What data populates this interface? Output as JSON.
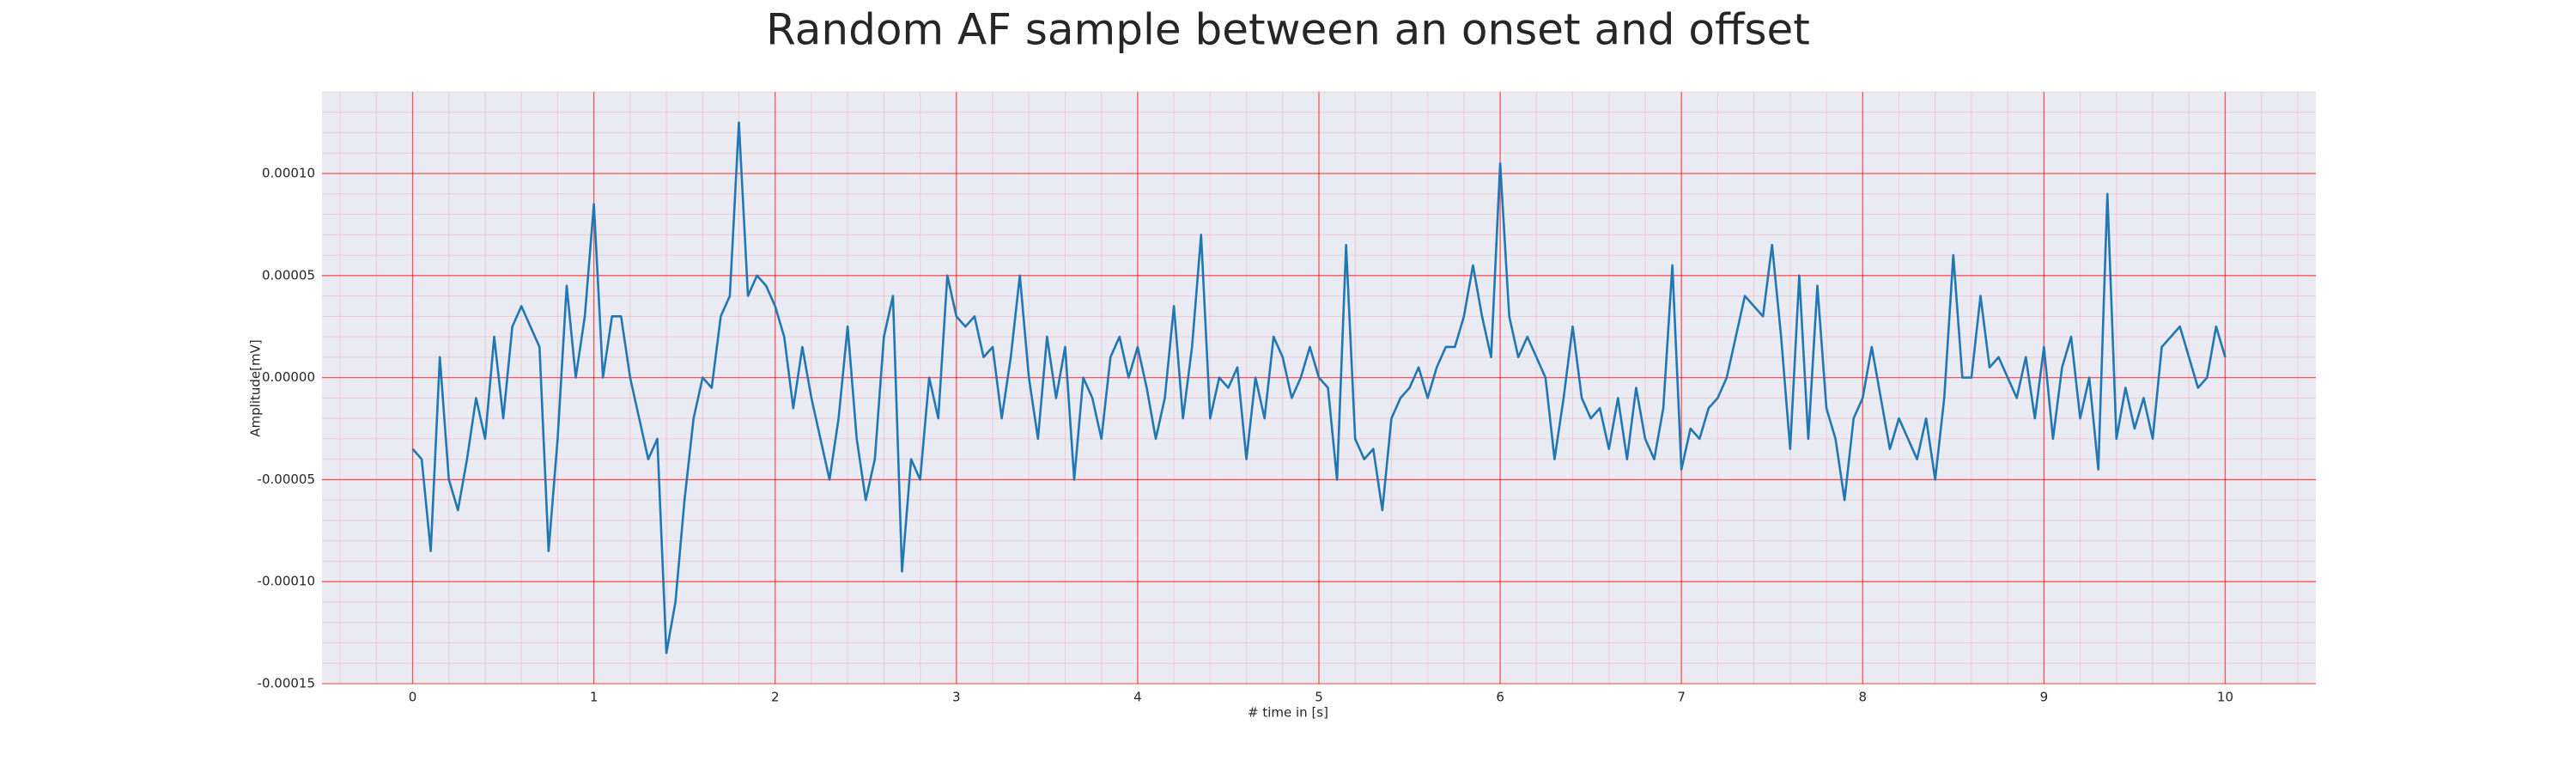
{
  "chart_data": {
    "type": "line",
    "title": "Random AF sample between an onset and offset",
    "xlabel": "# time in [s]",
    "ylabel": "Amplitude[mV]",
    "x": [
      0,
      0.05,
      0.1,
      0.15,
      0.2,
      0.25,
      0.3,
      0.35,
      0.4,
      0.45,
      0.5,
      0.55,
      0.6,
      0.65,
      0.7,
      0.75,
      0.8,
      0.85,
      0.9,
      0.95,
      1,
      1.05,
      1.1,
      1.15,
      1.2,
      1.25,
      1.3,
      1.35,
      1.4,
      1.45,
      1.5,
      1.55,
      1.6,
      1.65,
      1.7,
      1.75,
      1.8,
      1.85,
      1.9,
      1.95,
      2,
      2.05,
      2.1,
      2.15,
      2.2,
      2.25,
      2.3,
      2.35,
      2.4,
      2.45,
      2.5,
      2.55,
      2.6,
      2.65,
      2.7,
      2.75,
      2.8,
      2.85,
      2.9,
      2.95,
      3,
      3.05,
      3.1,
      3.15,
      3.2,
      3.25,
      3.3,
      3.35,
      3.4,
      3.45,
      3.5,
      3.55,
      3.6,
      3.65,
      3.7,
      3.75,
      3.8,
      3.85,
      3.9,
      3.95,
      4,
      4.05,
      4.1,
      4.15,
      4.2,
      4.25,
      4.3,
      4.35,
      4.4,
      4.45,
      4.5,
      4.55,
      4.6,
      4.65,
      4.7,
      4.75,
      4.8,
      4.85,
      4.9,
      4.95,
      5,
      5.05,
      5.1,
      5.15,
      5.2,
      5.25,
      5.3,
      5.35,
      5.4,
      5.45,
      5.5,
      5.55,
      5.6,
      5.65,
      5.7,
      5.75,
      5.8,
      5.85,
      5.9,
      5.95,
      6,
      6.05,
      6.1,
      6.15,
      6.2,
      6.25,
      6.3,
      6.35,
      6.4,
      6.45,
      6.5,
      6.55,
      6.6,
      6.65,
      6.7,
      6.75,
      6.8,
      6.85,
      6.9,
      6.95,
      7,
      7.05,
      7.1,
      7.15,
      7.2,
      7.25,
      7.3,
      7.35,
      7.4,
      7.45,
      7.5,
      7.55,
      7.6,
      7.65,
      7.7,
      7.75,
      7.8,
      7.85,
      7.9,
      7.95,
      8,
      8.05,
      8.1,
      8.15,
      8.2,
      8.25,
      8.3,
      8.35,
      8.4,
      8.45,
      8.5,
      8.55,
      8.6,
      8.65,
      8.7,
      8.75,
      8.8,
      8.85,
      8.9,
      8.95,
      9,
      9.05,
      9.1,
      9.15,
      9.2,
      9.25,
      9.3,
      9.35,
      9.4,
      9.45,
      9.5,
      9.55,
      9.6,
      9.65,
      9.7,
      9.75,
      9.8,
      9.85,
      9.9,
      9.95,
      10
    ],
    "series": [
      {
        "color": "#1f77b4",
        "values": [
          -3.5e-05,
          -4e-05,
          -8.5e-05,
          1e-05,
          -5e-05,
          -6.5e-05,
          -4e-05,
          -1e-05,
          -3e-05,
          2e-05,
          -2e-05,
          2.5e-05,
          3.5e-05,
          2.5e-05,
          1.5e-05,
          -8.5e-05,
          -3e-05,
          4.5e-05,
          0,
          3e-05,
          8.5e-05,
          0,
          3e-05,
          3e-05,
          0,
          -2e-05,
          -4e-05,
          -3e-05,
          -0.000135,
          -0.00011,
          -6e-05,
          -2e-05,
          0,
          -5e-06,
          3e-05,
          4e-05,
          0.000125,
          4e-05,
          5e-05,
          4.5e-05,
          3.5e-05,
          2e-05,
          -1.5e-05,
          1.5e-05,
          -1e-05,
          -3e-05,
          -5e-05,
          -2e-05,
          2.5e-05,
          -3e-05,
          -6e-05,
          -4e-05,
          2e-05,
          4e-05,
          -9.5e-05,
          -4e-05,
          -5e-05,
          0,
          -2e-05,
          5e-05,
          3e-05,
          2.5e-05,
          3e-05,
          1e-05,
          1.5e-05,
          -2e-05,
          1e-05,
          5e-05,
          0,
          -3e-05,
          2e-05,
          -1e-05,
          1.5e-05,
          -5e-05,
          0,
          -1e-05,
          -3e-05,
          1e-05,
          2e-05,
          0,
          1.5e-05,
          -5e-06,
          -3e-05,
          -1e-05,
          3.5e-05,
          -2e-05,
          1.5e-05,
          7e-05,
          -2e-05,
          0,
          -5e-06,
          5e-06,
          -4e-05,
          0,
          -2e-05,
          2e-05,
          1e-05,
          -1e-05,
          0,
          1.5e-05,
          0,
          -5e-06,
          -5e-05,
          6.5e-05,
          -3e-05,
          -4e-05,
          -3.5e-05,
          -6.5e-05,
          -2e-05,
          -1e-05,
          -5e-06,
          5e-06,
          -1e-05,
          5e-06,
          1.5e-05,
          1.5e-05,
          3e-05,
          5.5e-05,
          3e-05,
          1e-05,
          0.000105,
          3e-05,
          1e-05,
          2e-05,
          1e-05,
          0,
          -4e-05,
          -1e-05,
          2.5e-05,
          -1e-05,
          -2e-05,
          -1.5e-05,
          -3.5e-05,
          -1e-05,
          -4e-05,
          -5e-06,
          -3e-05,
          -4e-05,
          -1.5e-05,
          5.5e-05,
          -4.5e-05,
          -2.5e-05,
          -3e-05,
          -1.5e-05,
          -1e-05,
          0,
          2e-05,
          4e-05,
          3.5e-05,
          3e-05,
          6.5e-05,
          2e-05,
          -3.5e-05,
          5e-05,
          -3e-05,
          4.5e-05,
          -1.5e-05,
          -3e-05,
          -6e-05,
          -2e-05,
          -1e-05,
          1.5e-05,
          -1e-05,
          -3.5e-05,
          -2e-05,
          -3e-05,
          -4e-05,
          -2e-05,
          -5e-05,
          -1e-05,
          6e-05,
          0,
          0,
          4e-05,
          5e-06,
          1e-05,
          0,
          -1e-05,
          1e-05,
          -2e-05,
          1.5e-05,
          -3e-05,
          5e-06,
          2e-05,
          -2e-05,
          0,
          -4.5e-05,
          9e-05,
          -3e-05,
          -5e-06,
          -2.5e-05,
          -1e-05,
          -3e-05,
          1.5e-05,
          2e-05,
          2.5e-05,
          1e-05,
          -5e-06,
          0,
          2.5e-05,
          1e-05
        ]
      }
    ],
    "xlim": [
      -0.5,
      10.5
    ],
    "xticks": [
      0,
      1,
      2,
      3,
      4,
      5,
      6,
      7,
      8,
      9,
      10
    ],
    "ylim": [
      -0.00015,
      0.00014
    ],
    "yticks": [
      {
        "value": -0.00015,
        "label": "-0.00015"
      },
      {
        "value": -0.0001,
        "label": "-0.00010"
      },
      {
        "value": -5e-05,
        "label": "-0.00005"
      },
      {
        "value": 0,
        "label": "0.00000"
      },
      {
        "value": 5e-05,
        "label": "0.00005"
      },
      {
        "value": 0.0001,
        "label": "0.00010"
      }
    ],
    "grid": true,
    "minor_grid": true,
    "grid_color": "#ff0000",
    "background": "#eaeaf2"
  }
}
